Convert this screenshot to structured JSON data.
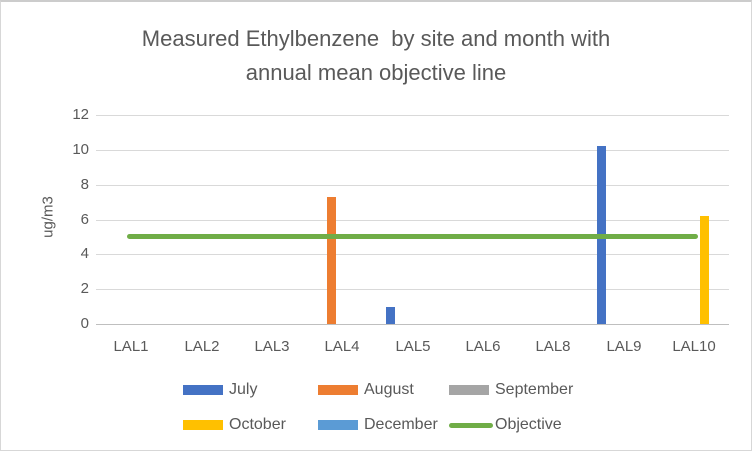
{
  "chart_data": {
    "type": "bar",
    "title_line1": "Measured Ethylbenzene  by site and month with",
    "title_line2": "annual mean objective line",
    "ylabel": "ug/m3",
    "categories": [
      "LAL1",
      "LAL2",
      "LAL3",
      "LAL4",
      "LAL5",
      "LAL6",
      "LAL8",
      "LAL9",
      "LAL10"
    ],
    "y_ticks": [
      0,
      2,
      4,
      6,
      8,
      10,
      12
    ],
    "ylim": [
      0,
      12
    ],
    "grid": true,
    "legend_position": "bottom",
    "series": [
      {
        "name": "July",
        "color": "#4472C4",
        "values": [
          null,
          null,
          null,
          null,
          1.0,
          null,
          null,
          10.2,
          null
        ]
      },
      {
        "name": "August",
        "color": "#ED7D31",
        "values": [
          null,
          null,
          null,
          7.3,
          null,
          null,
          null,
          null,
          null
        ]
      },
      {
        "name": "September",
        "color": "#A5A5A5",
        "values": [
          null,
          null,
          null,
          null,
          null,
          null,
          null,
          null,
          null
        ]
      },
      {
        "name": "October",
        "color": "#FFC000",
        "values": [
          null,
          null,
          null,
          null,
          null,
          null,
          null,
          null,
          6.2
        ]
      },
      {
        "name": "December",
        "color": "#5B9BD5",
        "values": [
          null,
          null,
          null,
          null,
          null,
          null,
          null,
          null,
          null
        ]
      }
    ],
    "objective_line": {
      "name": "Objective",
      "value": 5,
      "color": "#70AD47"
    },
    "legend_rows": [
      [
        "July",
        "August",
        "September"
      ],
      [
        "October",
        "December",
        "Objective"
      ]
    ],
    "colors": {
      "grid": "#D9D9D9",
      "axis": "#BFBFBF",
      "text": "#595959"
    }
  }
}
